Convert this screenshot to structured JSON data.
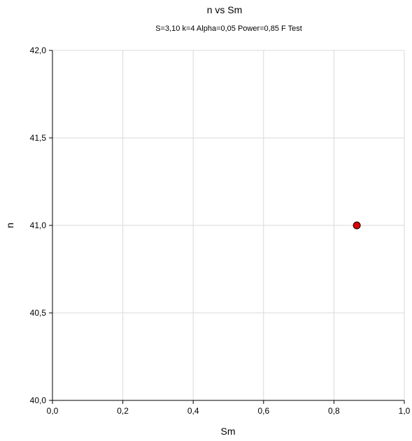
{
  "chart_data": {
    "type": "scatter",
    "title": "n vs Sm",
    "subtitle": "S=3,10 k=4 Alpha=0,05 Power=0,85 F Test",
    "xlabel": "Sm",
    "ylabel": "n",
    "xlim": [
      0.0,
      1.0
    ],
    "ylim": [
      40.0,
      42.0
    ],
    "x_ticks": [
      0.0,
      0.2,
      0.4,
      0.6,
      0.8,
      1.0
    ],
    "x_tick_labels": [
      "0,0",
      "0,2",
      "0,4",
      "0,6",
      "0,8",
      "1,0"
    ],
    "y_ticks": [
      40.0,
      40.5,
      41.0,
      41.5,
      42.0
    ],
    "y_tick_labels": [
      "40,0",
      "40,5",
      "41,0",
      "41,5",
      "42,0"
    ],
    "grid": true,
    "series": [
      {
        "points": [
          {
            "x": 0.865,
            "y": 41.0
          }
        ],
        "marker_color": "#e00000",
        "marker_edge": "#000000"
      }
    ],
    "colors": {
      "grid": "#d9d9d9",
      "axis": "#000000"
    }
  }
}
